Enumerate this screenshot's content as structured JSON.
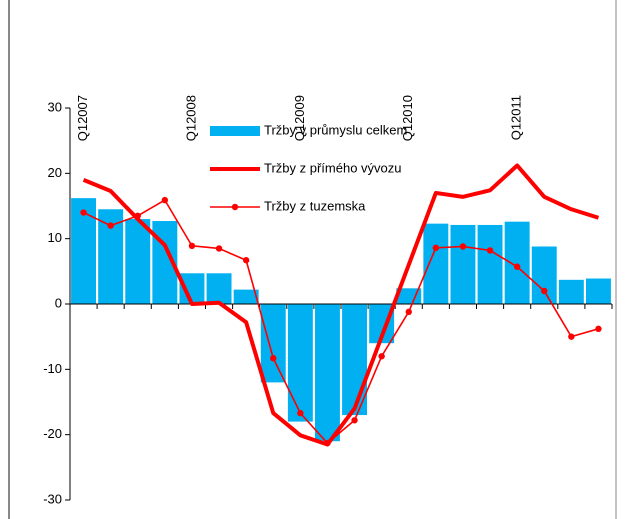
{
  "chart_data": {
    "type": "bar",
    "categories": [
      "Q12007",
      null,
      null,
      null,
      "Q12008",
      null,
      null,
      null,
      "Q12009",
      null,
      null,
      null,
      "Q12010",
      null,
      null,
      null,
      "Q12011",
      null,
      null,
      null
    ],
    "ylim": [
      -30,
      30
    ],
    "yticks": [
      -30,
      -20,
      -10,
      0,
      10,
      20,
      30
    ],
    "series": [
      {
        "name": "Tržby v průmyslu celkem",
        "type": "bar",
        "color": "#00b0f0",
        "values": [
          16.2,
          14.5,
          13,
          12.7,
          4.7,
          4.7,
          2.2,
          -12,
          -18,
          -21,
          -17,
          -6,
          2.4,
          12.3,
          12.1,
          12.1,
          12.6,
          8.8,
          3.7,
          3.9
        ]
      },
      {
        "name": "Tržby z přímého vývozu",
        "type": "line",
        "color": "#ff0000",
        "values": [
          19,
          17.3,
          13,
          9,
          0,
          0.2,
          -2.8,
          -16.7,
          -20.1,
          -21.5,
          -16,
          -5,
          6,
          17,
          16.4,
          17.4,
          21.2,
          16.4,
          14.5,
          13.2
        ]
      },
      {
        "name": "Tržby z tuzemska",
        "type": "line",
        "color": "#ff0000",
        "marker": true,
        "values": [
          14,
          12,
          13.5,
          15.9,
          8.9,
          8.5,
          6.7,
          -8.3,
          -16.7,
          -21.3,
          -17.8,
          -8,
          -1.2,
          8.6,
          8.8,
          8.2,
          5.7,
          2,
          -5,
          -3.8
        ]
      }
    ]
  }
}
